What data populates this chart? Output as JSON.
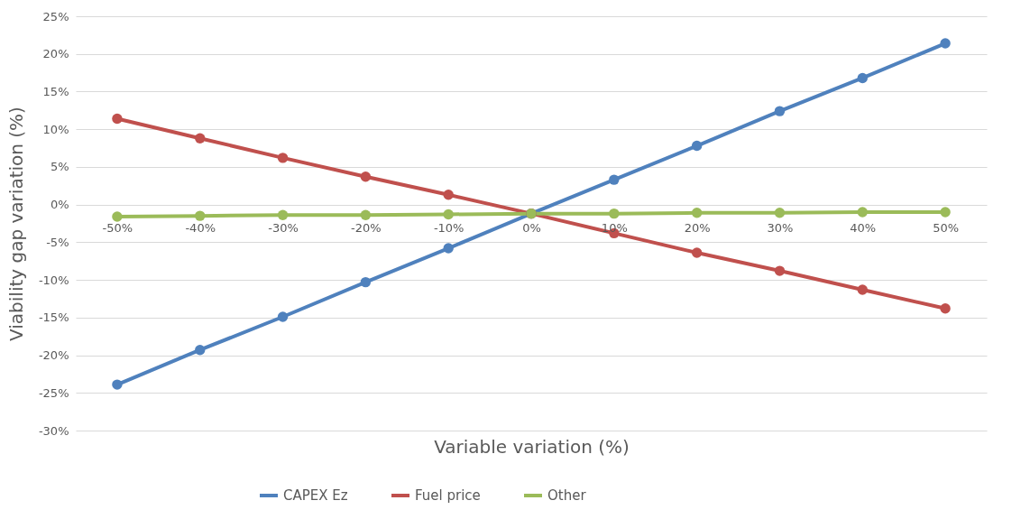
{
  "chart_data": {
    "type": "line",
    "xlabel": "Variable variation (%)",
    "ylabel": "Viability gap variation (%)",
    "x": [
      -50,
      -40,
      -30,
      -20,
      -10,
      0,
      10,
      20,
      30,
      40,
      50
    ],
    "series": [
      {
        "name": "CAPEX Ez",
        "color": "#4f81bd",
        "values": [
          -23.9,
          -19.3,
          -14.9,
          -10.3,
          -5.8,
          -1.2,
          3.3,
          7.8,
          12.4,
          16.8,
          21.4
        ]
      },
      {
        "name": "Fuel price",
        "color": "#c0504d",
        "values": [
          11.4,
          8.8,
          6.2,
          3.7,
          1.3,
          -1.2,
          -3.8,
          -6.4,
          -8.8,
          -11.3,
          -13.8
        ]
      },
      {
        "name": "Other",
        "color": "#9bbb59",
        "values": [
          -1.6,
          -1.5,
          -1.4,
          -1.4,
          -1.3,
          -1.2,
          -1.2,
          -1.1,
          -1.1,
          -1.0,
          -1.0
        ]
      }
    ],
    "xlim": [
      -55,
      55
    ],
    "xticks": [
      {
        "value": -50,
        "label": "-50%"
      },
      {
        "value": -40,
        "label": "-40%"
      },
      {
        "value": -30,
        "label": "-30%"
      },
      {
        "value": -20,
        "label": "-20%"
      },
      {
        "value": -10,
        "label": "-10%"
      },
      {
        "value": 0,
        "label": "0%"
      },
      {
        "value": 10,
        "label": "10%"
      },
      {
        "value": 20,
        "label": "20%"
      },
      {
        "value": 30,
        "label": "30%"
      },
      {
        "value": 40,
        "label": "40%"
      },
      {
        "value": 50,
        "label": "50%"
      }
    ],
    "ylim": [
      -30,
      25
    ],
    "yticks": [
      {
        "value": -30,
        "label": "-30%"
      },
      {
        "value": -25,
        "label": "-25%"
      },
      {
        "value": -20,
        "label": "-20%"
      },
      {
        "value": -15,
        "label": "-15%"
      },
      {
        "value": -10,
        "label": "-10%"
      },
      {
        "value": -5,
        "label": "-5%"
      },
      {
        "value": 0,
        "label": "0%"
      },
      {
        "value": 5,
        "label": "5%"
      },
      {
        "value": 10,
        "label": "10%"
      },
      {
        "value": 15,
        "label": "15%"
      },
      {
        "value": 20,
        "label": "20%"
      },
      {
        "value": 25,
        "label": "25%"
      }
    ],
    "grid": "y",
    "legend": "bottom",
    "marker": "circle",
    "line_style": "solid"
  }
}
